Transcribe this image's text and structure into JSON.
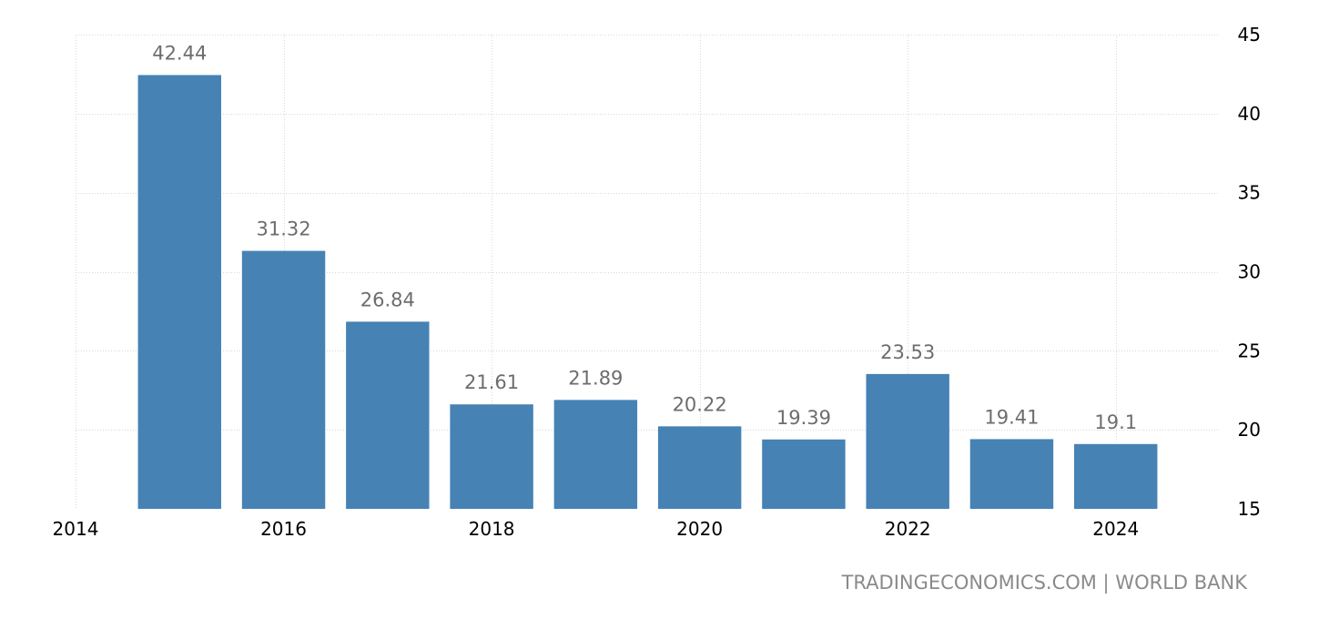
{
  "chart_data": {
    "type": "bar",
    "categories": [
      "2015",
      "2016",
      "2017",
      "2018",
      "2019",
      "2020",
      "2021",
      "2022",
      "2023",
      "2024"
    ],
    "values": [
      42.44,
      31.32,
      26.84,
      21.61,
      21.89,
      20.22,
      19.39,
      23.53,
      19.41,
      19.1
    ],
    "data_labels": [
      "42.44",
      "31.32",
      "26.84",
      "21.61",
      "21.89",
      "20.22",
      "19.39",
      "23.53",
      "19.41",
      "19.1"
    ],
    "x_ticks": [
      "2014",
      "2016",
      "2018",
      "2020",
      "2022",
      "2024"
    ],
    "y_ticks": [
      "15",
      "20",
      "25",
      "30",
      "35",
      "40",
      "45"
    ],
    "ylim": [
      15,
      45
    ],
    "xlim": [
      2014,
      2025
    ],
    "y_axis_side": "right",
    "grid": true,
    "bar_color": "#4682b4"
  },
  "source": "TRADINGECONOMICS.COM | WORLD BANK"
}
